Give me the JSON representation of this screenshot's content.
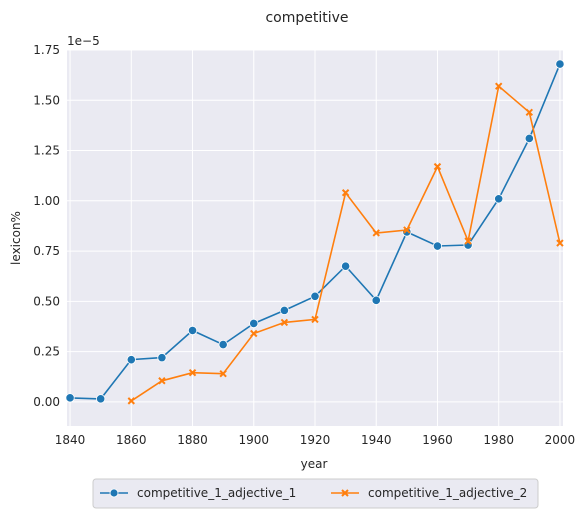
{
  "chart_data": {
    "type": "line",
    "title": "competitive",
    "xlabel": "year",
    "ylabel": "lexicon%",
    "offset_text": "1e−5",
    "xlim": [
      1839,
      2001
    ],
    "ylim": [
      -0.12,
      1.75
    ],
    "x_ticks": [
      1840,
      1860,
      1880,
      1900,
      1920,
      1940,
      1960,
      1980,
      2000
    ],
    "y_ticks": [
      0.0,
      0.25,
      0.5,
      0.75,
      1.0,
      1.25,
      1.5,
      1.75
    ],
    "y_tick_labels": [
      "0.00",
      "0.25",
      "0.50",
      "0.75",
      "1.00",
      "1.25",
      "1.50",
      "1.75"
    ],
    "grid": true,
    "legend_position": "bottom-center",
    "series": [
      {
        "name": "competitive_1_adjective_1",
        "color": "#1f77b4",
        "marker": "circle",
        "x": [
          1840,
          1850,
          1860,
          1870,
          1880,
          1890,
          1900,
          1910,
          1920,
          1930,
          1940,
          1950,
          1960,
          1970,
          1980,
          1990,
          2000
        ],
        "values": [
          0.02,
          0.015,
          0.21,
          0.22,
          0.355,
          0.285,
          0.39,
          0.455,
          0.525,
          0.675,
          0.505,
          0.845,
          0.775,
          0.78,
          1.01,
          1.31,
          1.68
        ]
      },
      {
        "name": "competitive_1_adjective_2",
        "color": "#ff7f0e",
        "marker": "x",
        "x": [
          1860,
          1870,
          1880,
          1890,
          1900,
          1910,
          1920,
          1930,
          1940,
          1950,
          1960,
          1970,
          1980,
          1990,
          2000
        ],
        "values": [
          0.005,
          0.105,
          0.145,
          0.14,
          0.34,
          0.395,
          0.41,
          1.04,
          0.84,
          0.855,
          1.17,
          0.8,
          1.57,
          1.44,
          0.79
        ]
      }
    ]
  }
}
